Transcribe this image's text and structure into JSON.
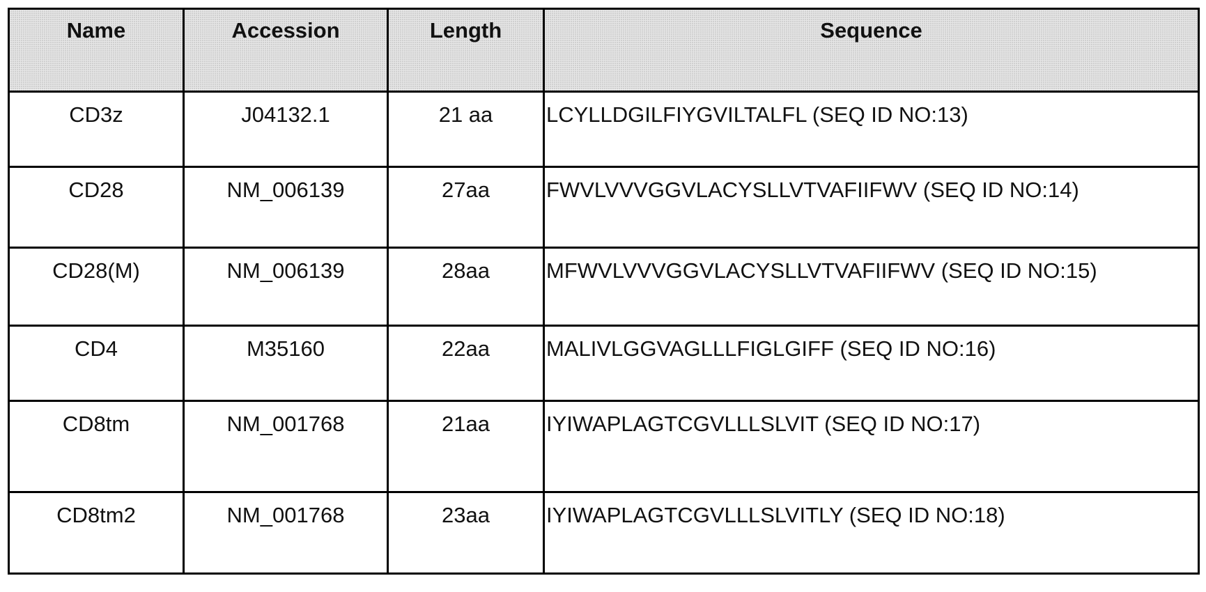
{
  "table": {
    "header": [
      "Name",
      "Accession",
      "Length",
      "Sequence"
    ],
    "rows": [
      [
        "CD3z",
        "J04132.1",
        "21 aa",
        "LCYLLDGILFIYGVILTALFL (SEQ ID NO:13)"
      ],
      [
        "CD28",
        "NM_006139",
        "27aa",
        "FWVLVVVGGVLACYSLLVTVAFIIFWV (SEQ ID NO:14)"
      ],
      [
        "CD28(M)",
        "NM_006139",
        "28aa",
        "MFWVLVVVGGVLACYSLLVTVAFIIFWV (SEQ ID NO:15)"
      ],
      [
        "CD4",
        "M35160",
        "22aa",
        "MALIVLGGVAGLLLFIGLGIFF (SEQ ID NO:16)"
      ],
      [
        "CD8tm",
        "NM_001768",
        "21aa",
        "IYIWAPLAGTCGVLLLSLVIT (SEQ ID NO:17)"
      ],
      [
        "CD8tm2",
        "NM_001768",
        "23aa",
        "IYIWAPLAGTCGVLLLSLVITLY (SEQ ID NO:18)"
      ]
    ]
  }
}
